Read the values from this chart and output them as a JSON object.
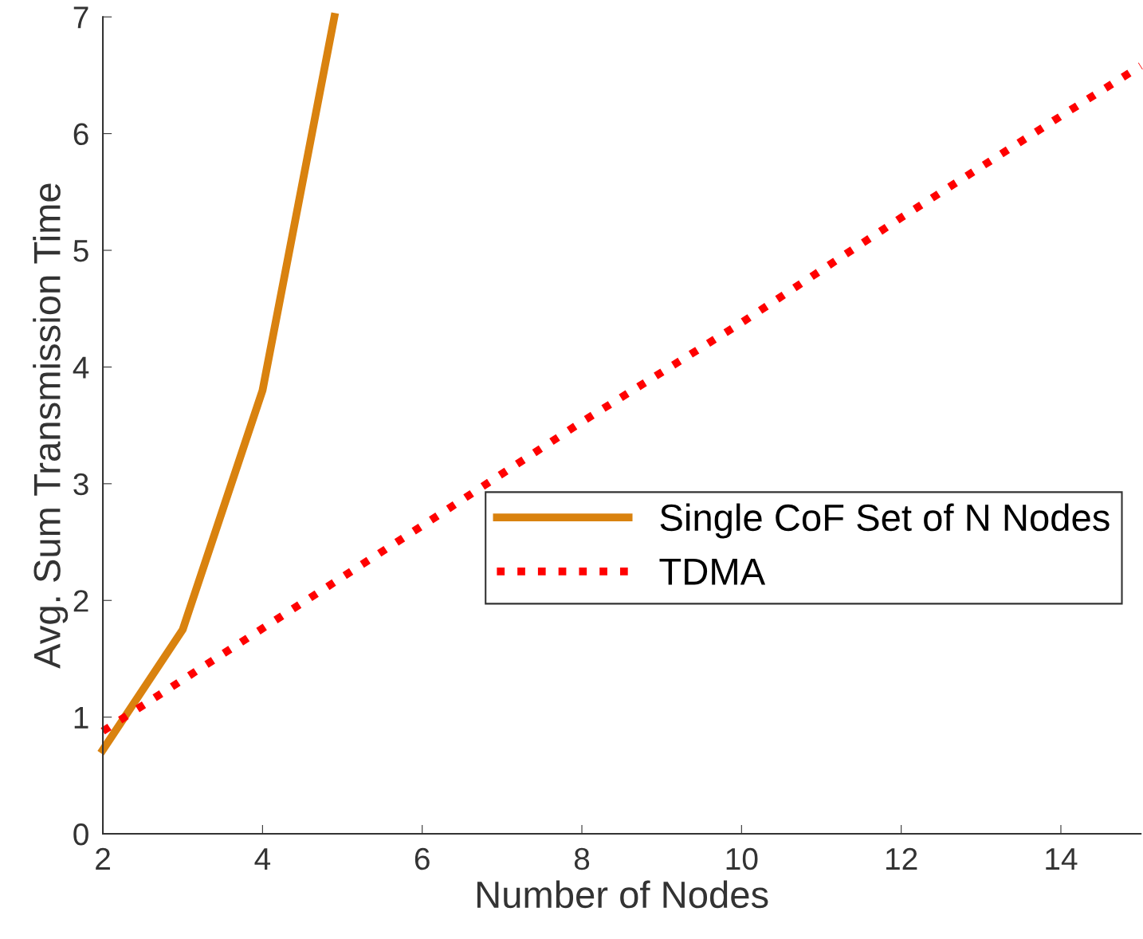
{
  "chart_data": {
    "type": "line",
    "xlabel": "Number of Nodes",
    "ylabel": "Avg. Sum Transmission Time",
    "xlim": [
      2,
      15
    ],
    "ylim": [
      0,
      7
    ],
    "xticks": [
      2,
      4,
      6,
      8,
      10,
      12,
      14
    ],
    "yticks": [
      0,
      1,
      2,
      3,
      4,
      5,
      6,
      7
    ],
    "grid": false,
    "legend": "right",
    "series": [
      {
        "name": "Single CoF Set of N Nodes",
        "color": "#d9820f",
        "line_style": "solid",
        "x": [
          2,
          3,
          4,
          4.9
        ],
        "values": [
          0.72,
          1.75,
          3.8,
          7.0
        ]
      },
      {
        "name": "TDMA",
        "color": "#ff0000",
        "line_style": "dotted",
        "x": [
          2,
          4,
          6,
          8,
          10,
          12,
          14,
          15
        ],
        "values": [
          0.88,
          1.76,
          2.64,
          3.53,
          4.38,
          5.28,
          6.15,
          6.58
        ]
      }
    ]
  }
}
